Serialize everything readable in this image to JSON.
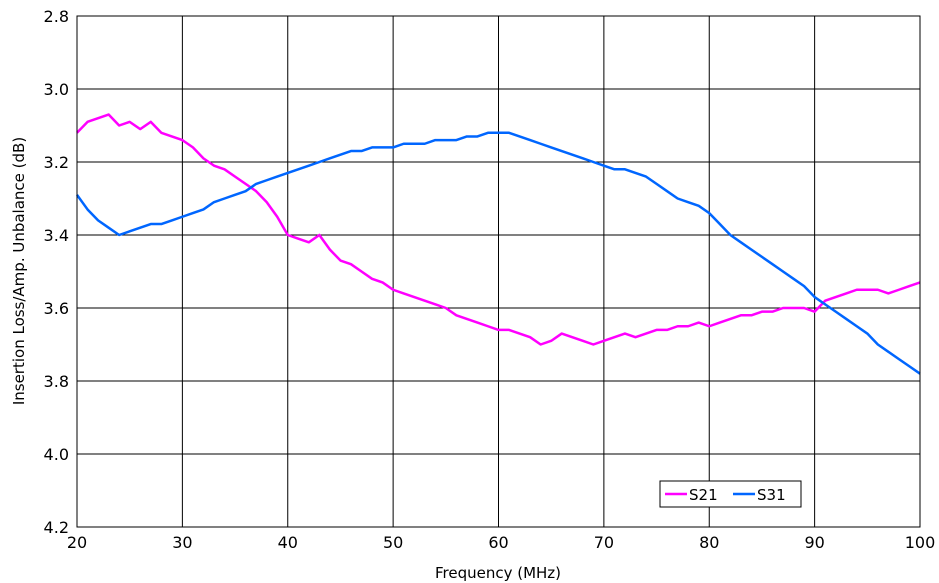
{
  "chart_data": {
    "type": "line",
    "title": "",
    "xlabel": "Frequency (MHz)",
    "ylabel": "Insertion Loss/Amp. Unbalance (dB)",
    "xlim": [
      20,
      100
    ],
    "ylim": [
      2.8,
      4.2
    ],
    "y_inverted": true,
    "grid": true,
    "legend_position": "bottom-right",
    "x_ticks": [
      "20",
      "30",
      "40",
      "50",
      "60",
      "70",
      "80",
      "90",
      "100"
    ],
    "y_ticks": [
      "2.8",
      "3.0",
      "3.2",
      "3.4",
      "3.6",
      "3.8",
      "4.0",
      "4.2"
    ],
    "series": [
      {
        "name": "S21",
        "color": "#ff00ff",
        "x": [
          20,
          21,
          22,
          23,
          24,
          25,
          26,
          27,
          28,
          29,
          30,
          31,
          32,
          33,
          34,
          35,
          36,
          37,
          38,
          39,
          40,
          41,
          42,
          43,
          44,
          45,
          46,
          47,
          48,
          49,
          50,
          51,
          52,
          53,
          54,
          55,
          56,
          57,
          58,
          59,
          60,
          61,
          62,
          63,
          64,
          65,
          66,
          67,
          68,
          69,
          70,
          71,
          72,
          73,
          74,
          75,
          76,
          77,
          78,
          79,
          80,
          81,
          82,
          83,
          84,
          85,
          86,
          87,
          88,
          89,
          90,
          91,
          92,
          93,
          94,
          95,
          96,
          97,
          98,
          99,
          100
        ],
        "y": [
          3.12,
          3.09,
          3.08,
          3.07,
          3.1,
          3.09,
          3.11,
          3.09,
          3.12,
          3.13,
          3.14,
          3.16,
          3.19,
          3.21,
          3.22,
          3.24,
          3.26,
          3.28,
          3.31,
          3.35,
          3.4,
          3.41,
          3.42,
          3.4,
          3.44,
          3.47,
          3.48,
          3.5,
          3.52,
          3.53,
          3.55,
          3.56,
          3.57,
          3.58,
          3.59,
          3.6,
          3.62,
          3.63,
          3.64,
          3.65,
          3.66,
          3.66,
          3.67,
          3.68,
          3.7,
          3.69,
          3.67,
          3.68,
          3.69,
          3.7,
          3.69,
          3.68,
          3.67,
          3.68,
          3.67,
          3.66,
          3.66,
          3.65,
          3.65,
          3.64,
          3.65,
          3.64,
          3.63,
          3.62,
          3.62,
          3.61,
          3.61,
          3.6,
          3.6,
          3.6,
          3.61,
          3.58,
          3.57,
          3.56,
          3.55,
          3.55,
          3.55,
          3.56,
          3.55,
          3.54,
          3.53
        ]
      },
      {
        "name": "S31",
        "color": "#0066ff",
        "x": [
          20,
          21,
          22,
          23,
          24,
          25,
          26,
          27,
          28,
          29,
          30,
          31,
          32,
          33,
          34,
          35,
          36,
          37,
          38,
          39,
          40,
          41,
          42,
          43,
          44,
          45,
          46,
          47,
          48,
          49,
          50,
          51,
          52,
          53,
          54,
          55,
          56,
          57,
          58,
          59,
          60,
          61,
          62,
          63,
          64,
          65,
          66,
          67,
          68,
          69,
          70,
          71,
          72,
          73,
          74,
          75,
          76,
          77,
          78,
          79,
          80,
          81,
          82,
          83,
          84,
          85,
          86,
          87,
          88,
          89,
          90,
          91,
          92,
          93,
          94,
          95,
          96,
          97,
          98,
          99,
          100
        ],
        "y": [
          3.29,
          3.33,
          3.36,
          3.38,
          3.4,
          3.39,
          3.38,
          3.37,
          3.37,
          3.36,
          3.35,
          3.34,
          3.33,
          3.31,
          3.3,
          3.29,
          3.28,
          3.26,
          3.25,
          3.24,
          3.23,
          3.22,
          3.21,
          3.2,
          3.19,
          3.18,
          3.17,
          3.17,
          3.16,
          3.16,
          3.16,
          3.15,
          3.15,
          3.15,
          3.14,
          3.14,
          3.14,
          3.13,
          3.13,
          3.12,
          3.12,
          3.12,
          3.13,
          3.14,
          3.15,
          3.16,
          3.17,
          3.18,
          3.19,
          3.2,
          3.21,
          3.22,
          3.22,
          3.23,
          3.24,
          3.26,
          3.28,
          3.3,
          3.31,
          3.32,
          3.34,
          3.37,
          3.4,
          3.42,
          3.44,
          3.46,
          3.48,
          3.5,
          3.52,
          3.54,
          3.57,
          3.59,
          3.61,
          3.63,
          3.65,
          3.67,
          3.7,
          3.72,
          3.74,
          3.76,
          3.78
        ]
      }
    ]
  }
}
